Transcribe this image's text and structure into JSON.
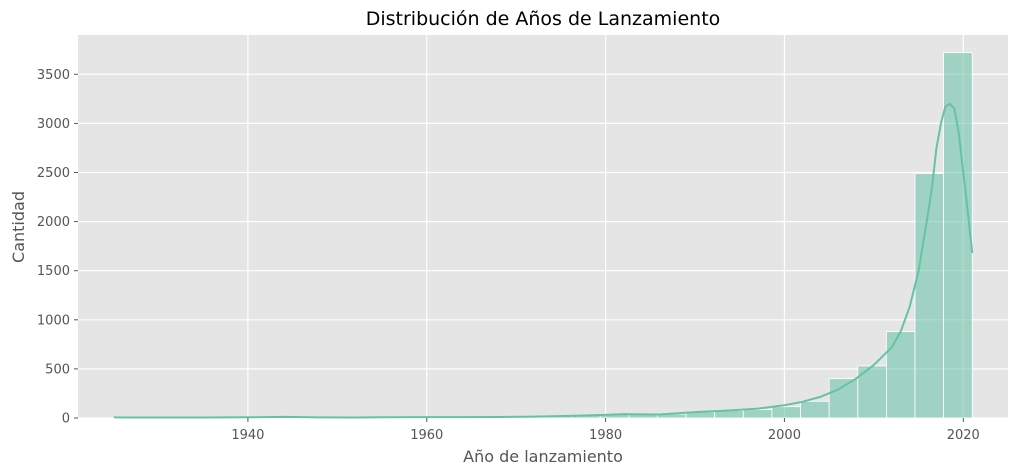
{
  "chart_data": {
    "type": "bar",
    "title": "Distribución de Años de Lanzamiento",
    "xlabel": "Año de lanzamiento",
    "ylabel": "Cantidad",
    "xlim": [
      1921,
      2025
    ],
    "ylim": [
      0,
      3900
    ],
    "grid": true,
    "colors": {
      "background": "#e5e5e5",
      "grid": "#ffffff",
      "bar": "#66c2a5",
      "kde": "#66c2a5",
      "tick_text": "#555555"
    },
    "x_ticks": [
      {
        "value": 1940,
        "label": "1940"
      },
      {
        "value": 1960,
        "label": "1960"
      },
      {
        "value": 1980,
        "label": "1980"
      },
      {
        "value": 2000,
        "label": "2000"
      },
      {
        "value": 2020,
        "label": "2020"
      }
    ],
    "y_ticks": [
      {
        "value": 0,
        "label": "0"
      },
      {
        "value": 500,
        "label": "500"
      },
      {
        "value": 1000,
        "label": "1000"
      },
      {
        "value": 1500,
        "label": "1500"
      },
      {
        "value": 2000,
        "label": "2000"
      },
      {
        "value": 2500,
        "label": "2500"
      },
      {
        "value": 3000,
        "label": "3000"
      },
      {
        "value": 3500,
        "label": "3500"
      }
    ],
    "bins": [
      {
        "start": 1925.0,
        "end": 1928.2,
        "value": 2
      },
      {
        "start": 1928.2,
        "end": 1931.4,
        "value": 1
      },
      {
        "start": 1931.4,
        "end": 1934.6,
        "value": 1
      },
      {
        "start": 1934.6,
        "end": 1937.8,
        "value": 1
      },
      {
        "start": 1937.8,
        "end": 1941.0,
        "value": 3
      },
      {
        "start": 1941.0,
        "end": 1944.2,
        "value": 5
      },
      {
        "start": 1944.2,
        "end": 1947.4,
        "value": 4
      },
      {
        "start": 1947.4,
        "end": 1950.6,
        "value": 2
      },
      {
        "start": 1950.6,
        "end": 1953.8,
        "value": 4
      },
      {
        "start": 1953.8,
        "end": 1957.0,
        "value": 6
      },
      {
        "start": 1957.0,
        "end": 1960.2,
        "value": 7
      },
      {
        "start": 1960.2,
        "end": 1963.4,
        "value": 8
      },
      {
        "start": 1963.4,
        "end": 1966.6,
        "value": 8
      },
      {
        "start": 1966.6,
        "end": 1969.8,
        "value": 10
      },
      {
        "start": 1969.8,
        "end": 1973.0,
        "value": 14
      },
      {
        "start": 1973.0,
        "end": 1976.2,
        "value": 22
      },
      {
        "start": 1976.2,
        "end": 1979.4,
        "value": 27
      },
      {
        "start": 1979.4,
        "end": 1982.6,
        "value": 38
      },
      {
        "start": 1982.6,
        "end": 1985.8,
        "value": 35
      },
      {
        "start": 1985.8,
        "end": 1989.0,
        "value": 40
      },
      {
        "start": 1989.0,
        "end": 1992.2,
        "value": 60
      },
      {
        "start": 1992.2,
        "end": 1995.4,
        "value": 75
      },
      {
        "start": 1995.4,
        "end": 1998.6,
        "value": 85
      },
      {
        "start": 1998.6,
        "end": 2001.8,
        "value": 115
      },
      {
        "start": 2001.8,
        "end": 2005.0,
        "value": 170
      },
      {
        "start": 2005.0,
        "end": 2008.2,
        "value": 400
      },
      {
        "start": 2008.2,
        "end": 2011.4,
        "value": 530
      },
      {
        "start": 2011.4,
        "end": 2014.6,
        "value": 880
      },
      {
        "start": 2014.6,
        "end": 2017.8,
        "value": 2490
      },
      {
        "start": 2017.8,
        "end": 2021.0,
        "value": 3720
      }
    ],
    "kde": {
      "x": [
        1925,
        1930,
        1935,
        1940,
        1944,
        1948,
        1952,
        1956,
        1960,
        1964,
        1968,
        1972,
        1976,
        1980,
        1982,
        1986,
        1990,
        1994,
        1997,
        2000,
        2002,
        2004,
        2006,
        2008,
        2010,
        2012,
        2013,
        2014,
        2015,
        2016,
        2016.5,
        2017,
        2017.5,
        2018,
        2018.5,
        2019,
        2019.5,
        2020,
        2020.5,
        2021
      ],
      "y": [
        6,
        5,
        5,
        7,
        12,
        6,
        5,
        8,
        9,
        9,
        10,
        14,
        22,
        32,
        40,
        36,
        60,
        78,
        95,
        130,
        165,
        215,
        290,
        400,
        540,
        720,
        880,
        1130,
        1500,
        2050,
        2350,
        2750,
        3000,
        3170,
        3200,
        3150,
        2900,
        2500,
        2100,
        1680
      ]
    }
  }
}
